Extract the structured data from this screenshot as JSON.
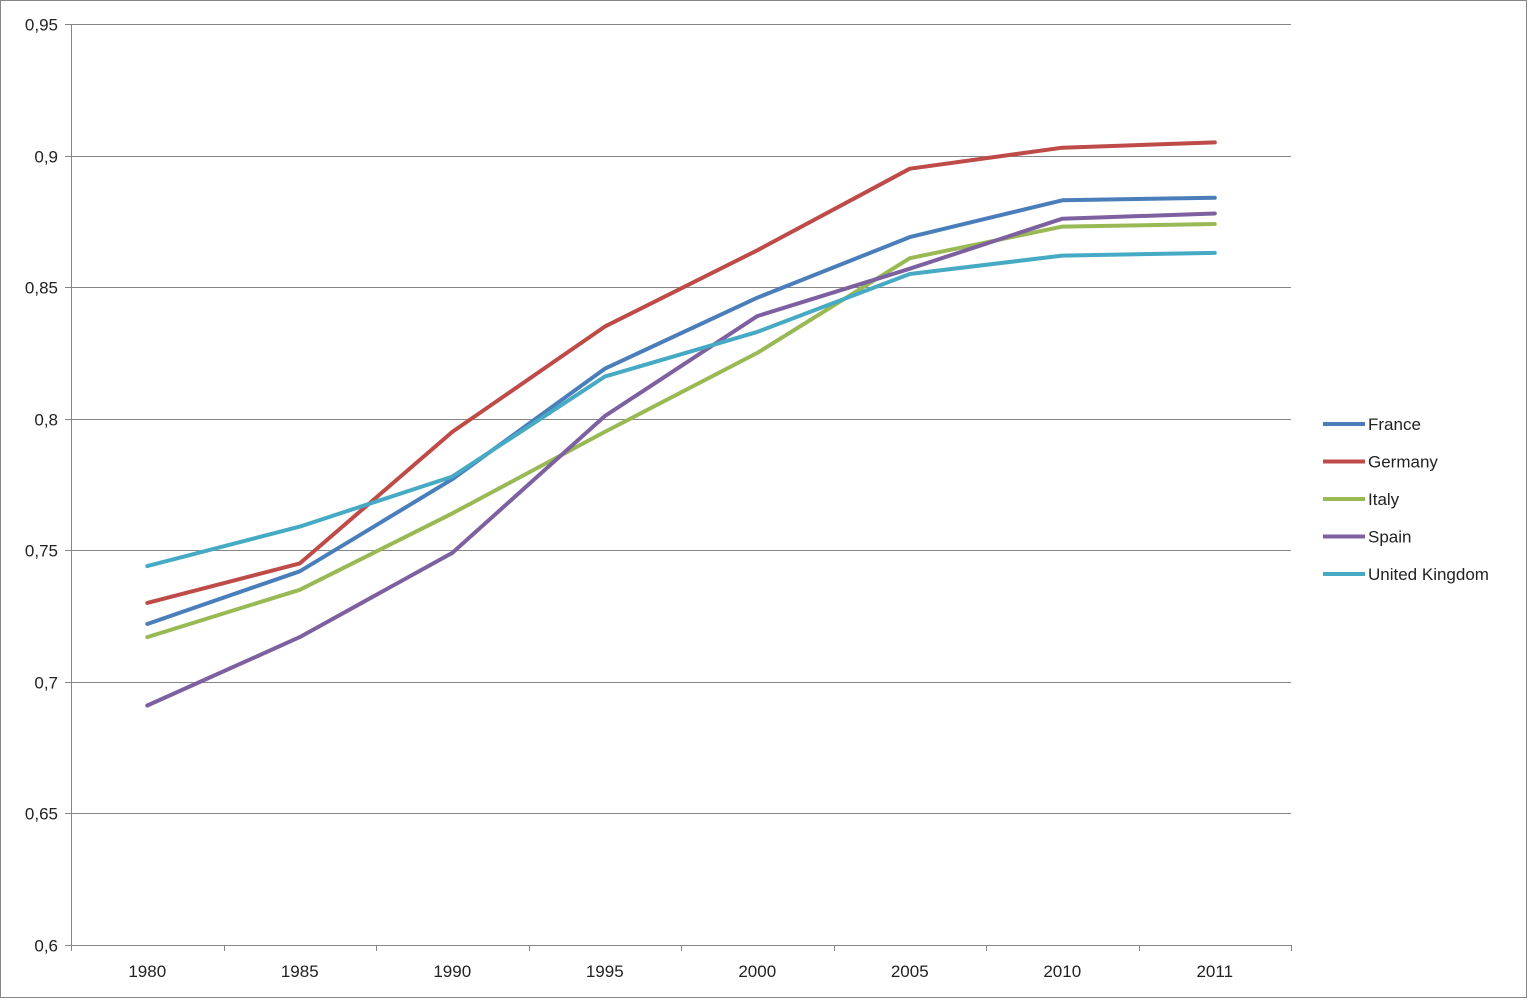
{
  "chart_data": {
    "type": "line",
    "title": "",
    "xlabel": "",
    "ylabel": "",
    "categories": [
      "1980",
      "1985",
      "1990",
      "1995",
      "2000",
      "2005",
      "2010",
      "2011"
    ],
    "y_tick_labels": [
      "0,6",
      "0,65",
      "0,7",
      "0,75",
      "0,8",
      "0,85",
      "0,9",
      "0,95"
    ],
    "ylim": [
      0.6,
      0.95
    ],
    "y_ticks": [
      0.6,
      0.65,
      0.7,
      0.75,
      0.8,
      0.85,
      0.9,
      0.95
    ],
    "grid": "horizontal",
    "legend_position": "right",
    "series": [
      {
        "name": "France",
        "color": "#4A7EBB",
        "values": [
          0.722,
          0.742,
          0.777,
          0.819,
          0.846,
          0.869,
          0.883,
          0.884
        ]
      },
      {
        "name": "Germany",
        "color": "#BE4B48",
        "values": [
          0.73,
          0.745,
          0.795,
          0.835,
          0.864,
          0.895,
          0.903,
          0.905
        ]
      },
      {
        "name": "Italy",
        "color": "#98B954",
        "values": [
          0.717,
          0.735,
          0.764,
          0.795,
          0.825,
          0.861,
          0.873,
          0.874
        ]
      },
      {
        "name": "Spain",
        "color": "#7D60A0",
        "values": [
          0.691,
          0.717,
          0.749,
          0.801,
          0.839,
          0.857,
          0.876,
          0.878
        ]
      },
      {
        "name": "United Kingdom",
        "color": "#46AAC5",
        "values": [
          0.744,
          0.759,
          0.778,
          0.816,
          0.833,
          0.855,
          0.862,
          0.863
        ]
      }
    ]
  }
}
